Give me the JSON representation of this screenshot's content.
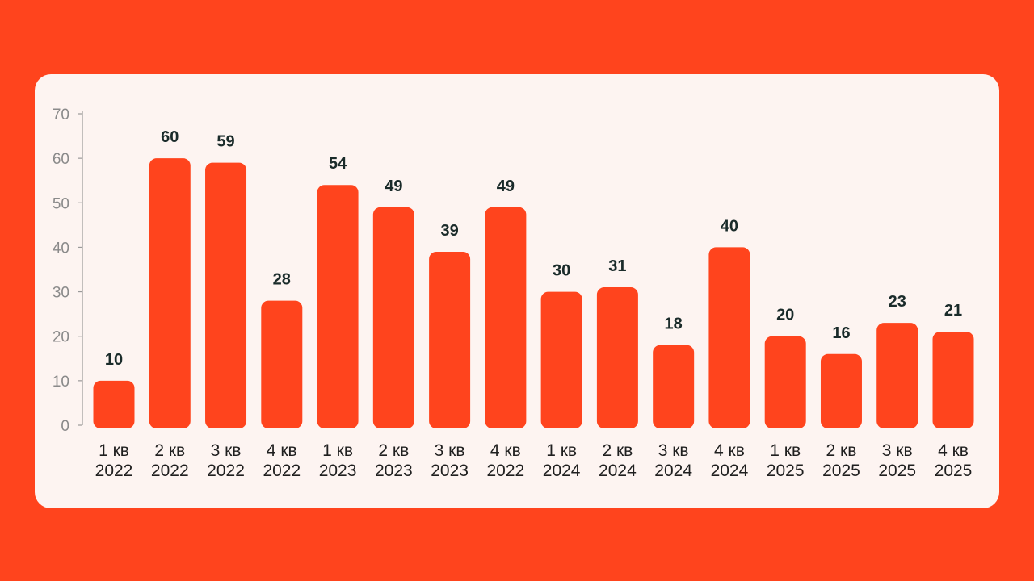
{
  "colors": {
    "page_background": "#ff441d",
    "card_background": "#fdf4f1",
    "bar": "#ff441d",
    "axis": "#9a9a9a",
    "data_label": "#1a2b2a"
  },
  "chart_data": {
    "type": "bar",
    "title": "",
    "xlabel": "",
    "ylabel": "",
    "ylim": [
      0,
      70
    ],
    "yticks": [
      0,
      10,
      20,
      30,
      40,
      50,
      60,
      70
    ],
    "grid": false,
    "categories": [
      [
        "1 кв",
        "2022"
      ],
      [
        "2 кв",
        "2022"
      ],
      [
        "3 кв",
        "2022"
      ],
      [
        "4 кв",
        "2022"
      ],
      [
        "1 кв",
        "2023"
      ],
      [
        "2 кв",
        "2023"
      ],
      [
        "3 кв",
        "2023"
      ],
      [
        "4 кв",
        "2022"
      ],
      [
        "1 кв",
        "2024"
      ],
      [
        "2 кв",
        "2024"
      ],
      [
        "3 кв",
        "2024"
      ],
      [
        "4 кв",
        "2024"
      ],
      [
        "1 кв",
        "2025"
      ],
      [
        "2 кв",
        "2025"
      ],
      [
        "3 кв",
        "2025"
      ],
      [
        "4 кв",
        "2025"
      ]
    ],
    "values": [
      10,
      60,
      59,
      28,
      54,
      49,
      39,
      49,
      30,
      31,
      18,
      40,
      20,
      16,
      23,
      21
    ]
  }
}
